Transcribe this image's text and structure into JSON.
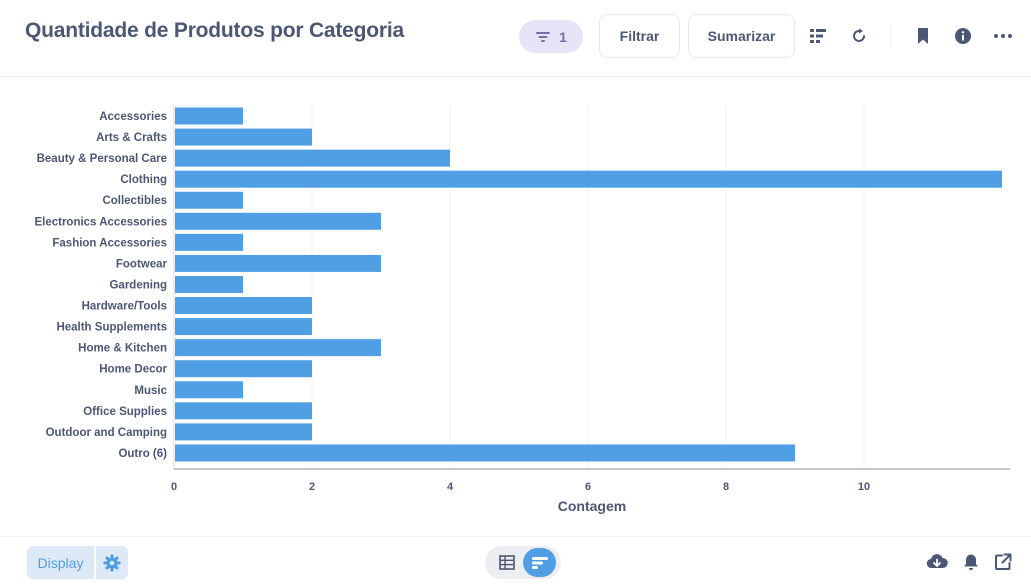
{
  "header": {
    "title": "Quantidade de Produtos por Categoria",
    "filter_count": "1",
    "filter_button": "Filtrar",
    "summarize_button": "Sumarizar"
  },
  "footer": {
    "display_button": "Display"
  },
  "colors": {
    "bar": "#509ee3",
    "text": "#4c5773",
    "accent": "#509ee3",
    "filter_pill_bg": "#e6e4f6"
  },
  "chart_data": {
    "type": "bar",
    "orientation": "horizontal",
    "categories": [
      "Accessories",
      "Arts & Crafts",
      "Beauty & Personal Care",
      "Clothing",
      "Collectibles",
      "Electronics Accessories",
      "Fashion Accessories",
      "Footwear",
      "Gardening",
      "Hardware/Tools",
      "Health Supplements",
      "Home & Kitchen",
      "Home Decor",
      "Music",
      "Office Supplies",
      "Outdoor and Camping",
      "Outro (6)"
    ],
    "values": [
      1,
      2,
      4,
      12,
      1,
      3,
      1,
      3,
      1,
      2,
      2,
      3,
      2,
      1,
      2,
      2,
      9
    ],
    "xlabel": "Contagem",
    "ylabel": "",
    "xlim": [
      0,
      12
    ],
    "xticks": [
      0,
      2,
      4,
      6,
      8,
      10
    ],
    "grid": true,
    "legend": "none"
  }
}
